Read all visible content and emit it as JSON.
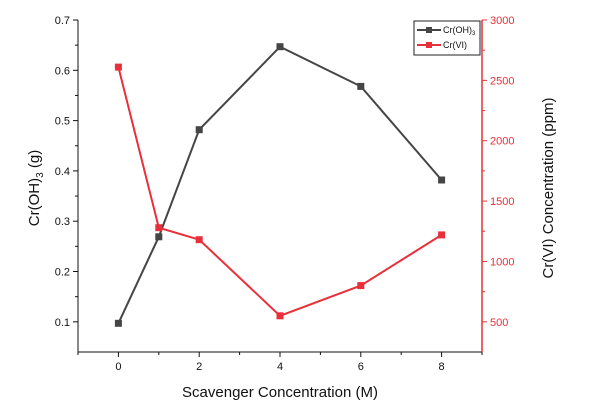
{
  "chart_data": {
    "type": "line",
    "xlabel": "Scavenger Concentration (M)",
    "ylabel_left": {
      "main": "Cr(OH)",
      "sub": "3",
      "tail": " (g)"
    },
    "ylabel_right": "Cr(VI) Concentration (ppm)",
    "x_ticks": [
      "0",
      "2",
      "4",
      "6",
      "8"
    ],
    "x_tick_values": [
      0,
      2,
      4,
      6,
      8
    ],
    "xlim": [
      -1,
      9
    ],
    "ylim_left": [
      0.04,
      0.7
    ],
    "ylim_right": [
      250,
      3000
    ],
    "y_left_ticks": [
      "0.1",
      "0.2",
      "0.3",
      "0.4",
      "0.5",
      "0.6",
      "0.7"
    ],
    "y_left_tick_values": [
      0.1,
      0.2,
      0.3,
      0.4,
      0.5,
      0.6,
      0.7
    ],
    "y_right_ticks": [
      "500",
      "1000",
      "1500",
      "2000",
      "2500",
      "3000"
    ],
    "y_right_tick_values": [
      500,
      1000,
      1500,
      2000,
      2500,
      3000
    ],
    "series": [
      {
        "key": "croh3",
        "name": "Cr(OH)",
        "name_sub": "3",
        "axis": "left",
        "color": "#454545",
        "x": [
          0,
          1,
          2,
          4,
          6,
          8
        ],
        "values": [
          0.097,
          0.269,
          0.482,
          0.647,
          0.568,
          0.382
        ]
      },
      {
        "key": "crvi",
        "name": "Cr(VI)",
        "axis": "right",
        "color": "#e8303a",
        "x": [
          0,
          1,
          2,
          4,
          6,
          8
        ],
        "values": [
          2610,
          1280,
          1180,
          550,
          800,
          1220
        ]
      }
    ],
    "legend_position": "top-right",
    "grid": false
  }
}
